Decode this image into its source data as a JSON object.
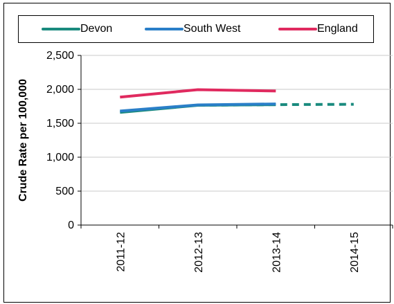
{
  "chart_data": {
    "type": "line",
    "title": "",
    "ylabel": "Crude Rate per 100,000",
    "xlabel": "",
    "categories": [
      "2011-12",
      "2012-13",
      "2013-14",
      "2014-15"
    ],
    "ylim": [
      0,
      2500
    ],
    "yticks": [
      "0",
      "500",
      "1,000",
      "1,500",
      "2,000",
      "2,500"
    ],
    "ytick_values": [
      0,
      500,
      1000,
      1500,
      2000,
      2500
    ],
    "grid": true,
    "legend_position": "top",
    "series": [
      {
        "name": "Devon",
        "color": "#1a8a7e",
        "values": [
          1660,
          1765,
          1775,
          null
        ],
        "projection": {
          "from_index": 1,
          "values": [
            null,
            1765,
            1775,
            1780
          ]
        }
      },
      {
        "name": "South West",
        "color": "#2a7fc8",
        "values": [
          1680,
          1770,
          1785,
          null
        ]
      },
      {
        "name": "England",
        "color": "#e02a5f",
        "values": [
          1885,
          1995,
          1975,
          null
        ]
      }
    ]
  }
}
